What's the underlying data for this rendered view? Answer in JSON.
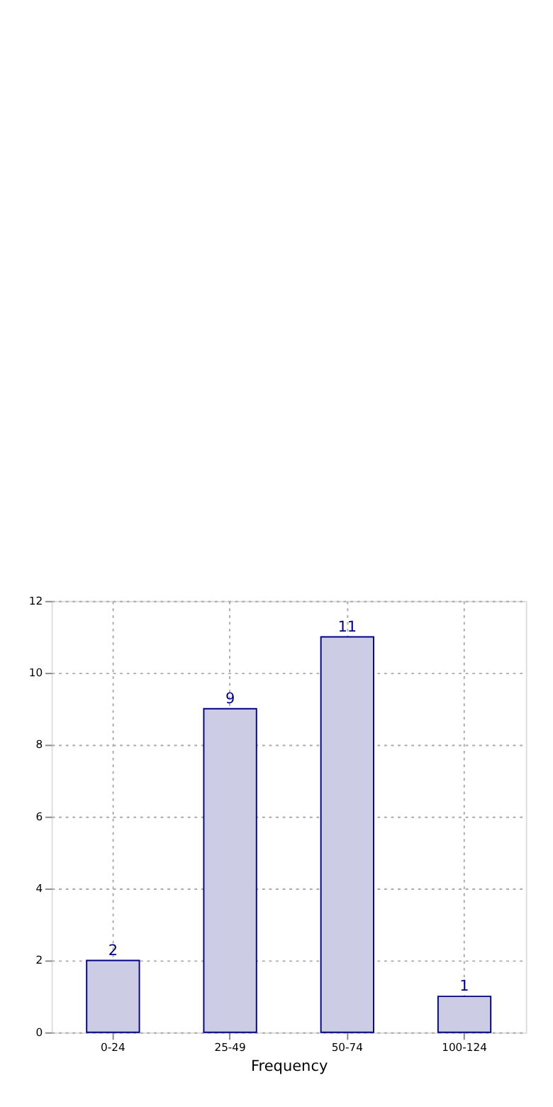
{
  "chart_data": {
    "type": "bar",
    "xlabel": "Frequency",
    "categories": [
      "0-24",
      "25-49",
      "50-74",
      "100-124"
    ],
    "values": [
      2,
      9,
      11,
      1
    ],
    "color": "#ccccE5",
    "ylim": [
      0,
      12
    ],
    "yticks": [
      0,
      2,
      4,
      6,
      8,
      10,
      12
    ],
    "grid": true,
    "data_labels": true
  }
}
